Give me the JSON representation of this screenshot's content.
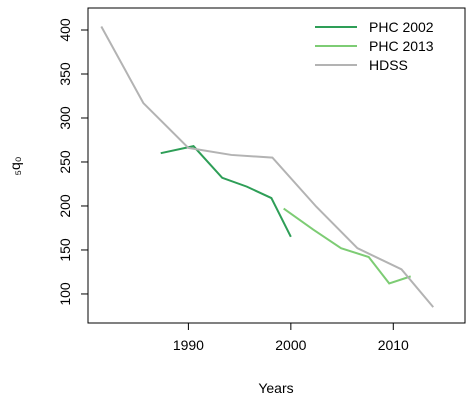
{
  "chart_data": {
    "type": "line",
    "xlabel": "Years",
    "ylabel": "₅q₀",
    "xlim": [
      1980.2,
      2017.0
    ],
    "ylim": [
      67,
      425
    ],
    "xticks": [
      1990,
      2000,
      2010
    ],
    "yticks": [
      100,
      150,
      200,
      250,
      300,
      350,
      400
    ],
    "grid": false,
    "legend": "top-right",
    "series": [
      {
        "name": "PHC 2002",
        "color": "#2e9e57",
        "x": [
          1987.3,
          1990.5,
          1993.3,
          1995.7,
          1998.1,
          2000.0
        ],
        "values": [
          260,
          268,
          232,
          222,
          209,
          165
        ]
      },
      {
        "name": "PHC 2013",
        "color": "#7dcc74",
        "x": [
          1999.3,
          2002.2,
          2004.9,
          2007.6,
          2009.6,
          2011.7
        ],
        "values": [
          197,
          173,
          152,
          142,
          112,
          120
        ]
      },
      {
        "name": "HDSS",
        "color": "#b3b3b3",
        "x": [
          1981.5,
          1985.6,
          1990.0,
          1994.2,
          1998.2,
          2002.5,
          2006.5,
          2010.8,
          2013.9
        ],
        "values": [
          404,
          317,
          266,
          258,
          255,
          199,
          152,
          128,
          85
        ]
      }
    ]
  }
}
